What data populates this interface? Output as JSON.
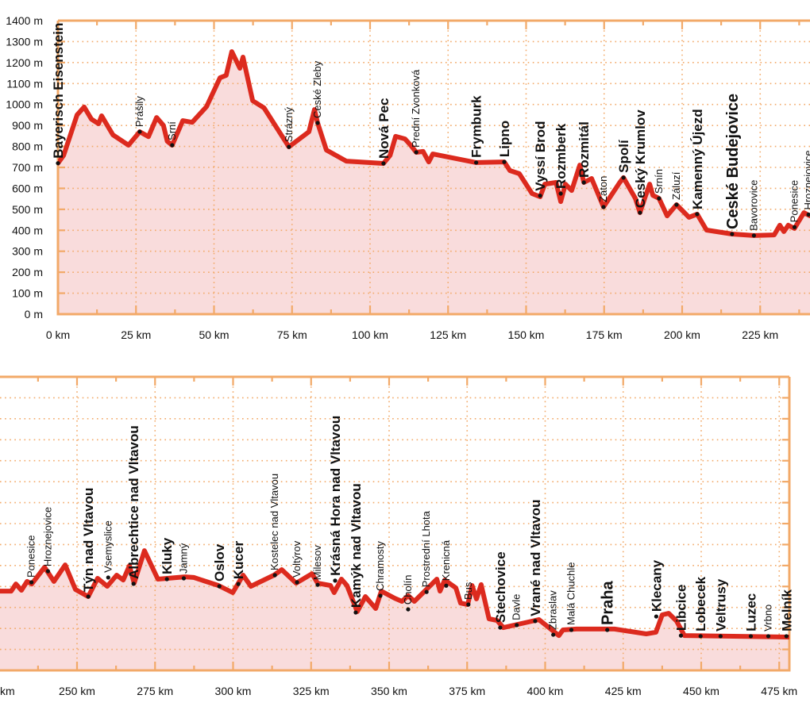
{
  "colors": {
    "line": "#dc2a1e",
    "fill": "#f9dcdc",
    "axis": "#f2a968",
    "grid": "#f2a968",
    "dot": "#111111"
  },
  "chart_data": [
    {
      "type": "area",
      "title": "",
      "xlabel": "",
      "ylabel": "",
      "xlim": [
        0,
        241
      ],
      "ylim": [
        0,
        1400
      ],
      "grid": true,
      "y_ticks": [
        "0 m",
        "100 m",
        "200 m",
        "300 m",
        "400 m",
        "500 m",
        "600 m",
        "700 m",
        "800 m",
        "900 m",
        "1000 m",
        "1100 m",
        "1200 m",
        "1300 m",
        "1400 m"
      ],
      "x_ticks": [
        "0 km",
        "25 km",
        "50 km",
        "75 km",
        "100 km",
        "125 km",
        "150 km",
        "175 km",
        "200 km",
        "225 km"
      ],
      "profile": [
        [
          0,
          720
        ],
        [
          1.8,
          757
        ],
        [
          6.1,
          950
        ],
        [
          8.4,
          988
        ],
        [
          10.7,
          930
        ],
        [
          13,
          908
        ],
        [
          14,
          946
        ],
        [
          17.6,
          855
        ],
        [
          22.6,
          806
        ],
        [
          26.2,
          870
        ],
        [
          29,
          847
        ],
        [
          31.6,
          938
        ],
        [
          33.8,
          900
        ],
        [
          35,
          825
        ],
        [
          36.6,
          806
        ],
        [
          40,
          923
        ],
        [
          43,
          915
        ],
        [
          47.6,
          990
        ],
        [
          51.9,
          1127
        ],
        [
          53.9,
          1139
        ],
        [
          55.7,
          1252
        ],
        [
          58.3,
          1173
        ],
        [
          59.3,
          1226
        ],
        [
          62.4,
          1018
        ],
        [
          66,
          984
        ],
        [
          74,
          798
        ],
        [
          80.4,
          870
        ],
        [
          82.2,
          976
        ],
        [
          83.2,
          912
        ],
        [
          86,
          783
        ],
        [
          92.4,
          730
        ],
        [
          104.3,
          719
        ],
        [
          106.4,
          757
        ],
        [
          108.2,
          848
        ],
        [
          111.2,
          836
        ],
        [
          113,
          806
        ],
        [
          114.8,
          772
        ],
        [
          117,
          776
        ],
        [
          118.8,
          726
        ],
        [
          120.1,
          764
        ],
        [
          134,
          723
        ],
        [
          143,
          726
        ],
        [
          144.8,
          685
        ],
        [
          147.8,
          670
        ],
        [
          151.9,
          575
        ],
        [
          154.5,
          560
        ],
        [
          156,
          620
        ],
        [
          159.6,
          628
        ],
        [
          161.1,
          537
        ],
        [
          162.6,
          620
        ],
        [
          164.6,
          590
        ],
        [
          167.2,
          711
        ],
        [
          168.5,
          628
        ],
        [
          171,
          647
        ],
        [
          174.8,
          511
        ],
        [
          180,
          628
        ],
        [
          181.2,
          651
        ],
        [
          185,
          552
        ],
        [
          186.5,
          484
        ],
        [
          188,
          552
        ],
        [
          189.6,
          620
        ],
        [
          190.6,
          567
        ],
        [
          192.6,
          552
        ],
        [
          195.2,
          469
        ],
        [
          198.2,
          522
        ],
        [
          202.2,
          462
        ],
        [
          204.8,
          477
        ],
        [
          207.8,
          401
        ],
        [
          216,
          382
        ],
        [
          223,
          375
        ],
        [
          229.5,
          378
        ],
        [
          231.3,
          424
        ],
        [
          232.6,
          394
        ],
        [
          234,
          424
        ],
        [
          236,
          409
        ],
        [
          239,
          484
        ],
        [
          241,
          469
        ]
      ],
      "stations": [
        {
          "name": "Bayerisch Eisenstein",
          "km": 0,
          "elev": 720,
          "style": "b"
        },
        {
          "name": "Prášily",
          "km": 26.2,
          "elev": 870,
          "style": "n"
        },
        {
          "name": "Srní",
          "km": 36.6,
          "elev": 806,
          "style": "n"
        },
        {
          "name": "Strázný",
          "km": 74,
          "elev": 798,
          "style": "n"
        },
        {
          "name": "Ceské Zleby",
          "km": 83.2,
          "elev": 912,
          "style": "n"
        },
        {
          "name": "Nová Pec",
          "km": 104.3,
          "elev": 719,
          "style": "b"
        },
        {
          "name": "Prední Zvonková",
          "km": 114.8,
          "elev": 772,
          "style": "n"
        },
        {
          "name": "Frymburk",
          "km": 134,
          "elev": 723,
          "style": "b"
        },
        {
          "name": "Lipno",
          "km": 143,
          "elev": 726,
          "style": "b"
        },
        {
          "name": "Vyssí Brod",
          "km": 154.5,
          "elev": 565,
          "style": "b"
        },
        {
          "name": "Rozmberk",
          "km": 161.1,
          "elev": 575,
          "style": "b"
        },
        {
          "name": "Rozmitál",
          "km": 168.5,
          "elev": 628,
          "style": "b"
        },
        {
          "name": "Záton",
          "km": 174.8,
          "elev": 511,
          "style": "n"
        },
        {
          "name": "Spolí",
          "km": 181.2,
          "elev": 651,
          "style": "b"
        },
        {
          "name": "Ceský Krumlov",
          "km": 186.5,
          "elev": 484,
          "style": "b"
        },
        {
          "name": "Srnín",
          "km": 192.6,
          "elev": 552,
          "style": "n"
        },
        {
          "name": "Záluzí",
          "km": 198.2,
          "elev": 522,
          "style": "n"
        },
        {
          "name": "Kamenný Újezd",
          "km": 204.8,
          "elev": 477,
          "style": "b"
        },
        {
          "name": "Ceské Budejovice",
          "km": 216,
          "elev": 382,
          "style": "xb"
        },
        {
          "name": "Bavorovice",
          "km": 223,
          "elev": 375,
          "style": "n"
        },
        {
          "name": "Ponesice",
          "km": 236,
          "elev": 415,
          "style": "n"
        },
        {
          "name": "Hroznejovice",
          "km": 240.5,
          "elev": 475,
          "style": "n"
        }
      ]
    },
    {
      "type": "area",
      "title": "",
      "xlabel": "",
      "ylabel": "",
      "xlim": [
        225.3,
        478
      ],
      "ylim": [
        0,
        1400
      ],
      "grid": true,
      "x_ticks": [
        "250 km",
        "275 km",
        "300 km",
        "325 km",
        "350 km",
        "375 km",
        "400 km",
        "425 km",
        "450 km",
        "475 km"
      ],
      "x_tick_partial": "km",
      "profile": [
        [
          225.3,
          378
        ],
        [
          228.9,
          378
        ],
        [
          230.4,
          412
        ],
        [
          232.2,
          382
        ],
        [
          234,
          424
        ],
        [
          235.5,
          412
        ],
        [
          239.6,
          492
        ],
        [
          242.6,
          424
        ],
        [
          246.2,
          503
        ],
        [
          249.5,
          386
        ],
        [
          253.6,
          352
        ],
        [
          256.6,
          439
        ],
        [
          259.7,
          401
        ],
        [
          262.7,
          454
        ],
        [
          264.8,
          431
        ],
        [
          266.8,
          499
        ],
        [
          268.3,
          416
        ],
        [
          271.6,
          571
        ],
        [
          275.9,
          435
        ],
        [
          284.6,
          446
        ],
        [
          287.4,
          443
        ],
        [
          295.3,
          405
        ],
        [
          299.9,
          371
        ],
        [
          303.2,
          454
        ],
        [
          305.7,
          401
        ],
        [
          313.1,
          454
        ],
        [
          315.6,
          480
        ],
        [
          320.2,
          416
        ],
        [
          325.3,
          461
        ],
        [
          327.1,
          416
        ],
        [
          331.2,
          405
        ],
        [
          332.4,
          371
        ],
        [
          334.7,
          435
        ],
        [
          336.5,
          405
        ],
        [
          339.8,
          280
        ],
        [
          342.4,
          352
        ],
        [
          345.7,
          295
        ],
        [
          347.5,
          378
        ],
        [
          351.8,
          344
        ],
        [
          354.1,
          329
        ],
        [
          356.1,
          356
        ],
        [
          358.1,
          329
        ],
        [
          365.3,
          435
        ],
        [
          366.3,
          378
        ],
        [
          367.8,
          431
        ],
        [
          371.4,
          393
        ],
        [
          372.9,
          321
        ],
        [
          375.2,
          314
        ],
        [
          376.6,
          405
        ],
        [
          378,
          341
        ],
        [
          379.5,
          409
        ],
        [
          382,
          246
        ],
        [
          384.6,
          238
        ],
        [
          386.6,
          204
        ],
        [
          393.5,
          227
        ],
        [
          398,
          242
        ],
        [
          404.4,
          166
        ],
        [
          405.7,
          193
        ],
        [
          410,
          197
        ],
        [
          422.2,
          197
        ],
        [
          432.4,
          174
        ],
        [
          435.5,
          182
        ],
        [
          437.5,
          265
        ],
        [
          439.6,
          272
        ],
        [
          442.1,
          235
        ],
        [
          444.6,
          166
        ],
        [
          478,
          159
        ]
      ],
      "stations": [
        {
          "name": "Ponesice",
          "km": 235.4,
          "elev": 420,
          "style": "n"
        },
        {
          "name": "Hroznejovice",
          "km": 240.7,
          "elev": 473,
          "style": "n"
        },
        {
          "name": "Týn nad Vltavou",
          "km": 253.6,
          "elev": 352,
          "style": "b"
        },
        {
          "name": "Vsemyslice",
          "km": 260,
          "elev": 443,
          "style": "n"
        },
        {
          "name": "Albrechtice nad Vltavou",
          "km": 268.1,
          "elev": 413,
          "style": "b"
        },
        {
          "name": "Kluky",
          "km": 278.8,
          "elev": 435,
          "style": "b"
        },
        {
          "name": "Jamný",
          "km": 284.2,
          "elev": 439,
          "style": "n"
        },
        {
          "name": "Oslov",
          "km": 295.6,
          "elev": 401,
          "style": "b"
        },
        {
          "name": "Kucer",
          "km": 301.7,
          "elev": 412,
          "style": "b"
        },
        {
          "name": "Kostelec nad Vltavou",
          "km": 313.4,
          "elev": 454,
          "style": "n"
        },
        {
          "name": "Voltýrov",
          "km": 320.5,
          "elev": 420,
          "style": "n"
        },
        {
          "name": "Milesov",
          "km": 327.1,
          "elev": 408,
          "style": "n"
        },
        {
          "name": "Krásná Hora nad Vltavou",
          "km": 332.7,
          "elev": 428,
          "style": "b"
        },
        {
          "name": "Kamýk nad Vltavou",
          "km": 339.3,
          "elev": 276,
          "style": "b"
        },
        {
          "name": "Chramosty",
          "km": 347.2,
          "elev": 356,
          "style": "n"
        },
        {
          "name": "Cholín",
          "km": 356.1,
          "elev": 291,
          "style": "n"
        },
        {
          "name": "Prostrední Lhota",
          "km": 362,
          "elev": 374,
          "style": "n"
        },
        {
          "name": "Krenicná",
          "km": 368.3,
          "elev": 404,
          "style": "n"
        },
        {
          "name": "Bus",
          "km": 375.4,
          "elev": 314,
          "style": "n"
        },
        {
          "name": "Stechovice",
          "km": 385.6,
          "elev": 204,
          "style": "b"
        },
        {
          "name": "Davle",
          "km": 390.9,
          "elev": 216,
          "style": "n"
        },
        {
          "name": "Vrané nad Vltavou",
          "km": 396.8,
          "elev": 235,
          "style": "b"
        },
        {
          "name": "Zbraslav",
          "km": 402.6,
          "elev": 170,
          "style": "n"
        },
        {
          "name": "Malá Chuchle",
          "km": 408.4,
          "elev": 193,
          "style": "n"
        },
        {
          "name": "Praha",
          "km": 419.9,
          "elev": 193,
          "style": "xb"
        },
        {
          "name": "Klecany",
          "km": 435.6,
          "elev": 257,
          "style": "b"
        },
        {
          "name": "Libcice",
          "km": 443.5,
          "elev": 166,
          "style": "b"
        },
        {
          "name": "Lobecek",
          "km": 449.8,
          "elev": 163,
          "style": "b"
        },
        {
          "name": "Veltrusy",
          "km": 456.2,
          "elev": 163,
          "style": "b"
        },
        {
          "name": "Luzec",
          "km": 465.9,
          "elev": 163,
          "style": "b"
        },
        {
          "name": "Vrbno",
          "km": 471.5,
          "elev": 163,
          "style": "n"
        },
        {
          "name": "Melník",
          "km": 477.3,
          "elev": 163,
          "style": "b"
        }
      ]
    }
  ]
}
